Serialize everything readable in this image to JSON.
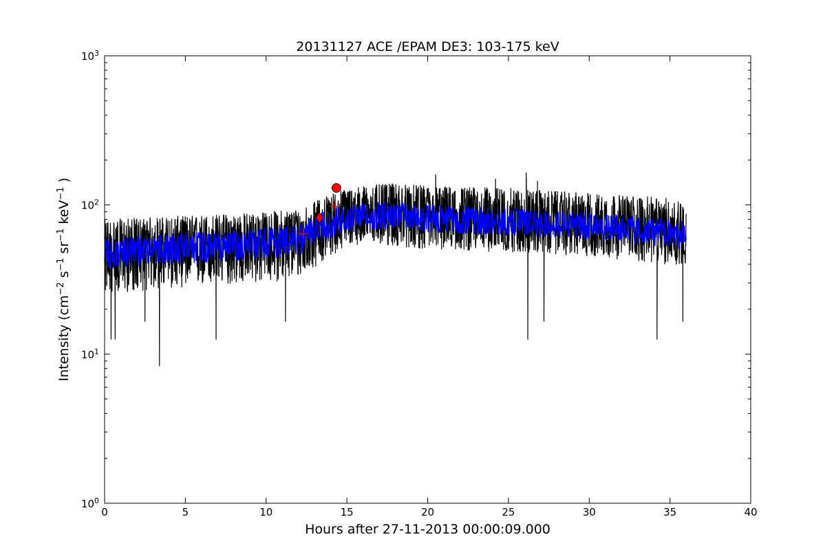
{
  "chart_data": {
    "type": "line",
    "title": "20131127 ACE /EPAM DE3: 103-175 keV",
    "xlabel": "Hours after 27-11-2013 00:00:09.000",
    "ylabel_parts": [
      "Intensity (cm",
      "−2",
      " s",
      "−1",
      " sr",
      "−1",
      " keV",
      "−1",
      " )"
    ],
    "xlim": [
      0,
      40
    ],
    "ylim": [
      1,
      1000
    ],
    "yscale": "log",
    "grid": false,
    "xticks": [
      0,
      5,
      10,
      15,
      20,
      25,
      30,
      35,
      40
    ],
    "ytick_labels": [
      {
        "value": 1,
        "base": "10",
        "exp": "0"
      },
      {
        "value": 10,
        "base": "10",
        "exp": "1"
      },
      {
        "value": 100,
        "base": "10",
        "exp": "2"
      },
      {
        "value": 1000,
        "base": "10",
        "exp": "3"
      }
    ],
    "series": [
      {
        "color": "#000000",
        "style": "noisy raw data",
        "x_range": [
          0,
          36
        ],
        "envelope": {
          "x": [
            0,
            5,
            10,
            12,
            13,
            14,
            15,
            16,
            18,
            20,
            25,
            30,
            36
          ],
          "median": [
            45,
            50,
            55,
            58,
            68,
            75,
            82,
            85,
            88,
            82,
            78,
            72,
            62
          ],
          "low": [
            25,
            28,
            30,
            32,
            38,
            45,
            52,
            55,
            52,
            50,
            48,
            45,
            38
          ],
          "high": [
            80,
            85,
            90,
            95,
            105,
            120,
            130,
            135,
            140,
            135,
            130,
            120,
            110
          ]
        },
        "dips": [
          {
            "x": 3.4,
            "y": 8.3
          },
          {
            "x": 0.4,
            "y": 12.5
          },
          {
            "x": 0.65,
            "y": 12.5
          },
          {
            "x": 6.9,
            "y": 12.5
          },
          {
            "x": 26.2,
            "y": 12.5
          },
          {
            "x": 34.2,
            "y": 12.5
          },
          {
            "x": 2.5,
            "y": 16.5
          },
          {
            "x": 11.2,
            "y": 16.5
          },
          {
            "x": 27.2,
            "y": 16.5
          },
          {
            "x": 35.8,
            "y": 16.5
          }
        ],
        "peaks": [
          {
            "x": 20.5,
            "y": 160
          },
          {
            "x": 26.1,
            "y": 165
          },
          {
            "x": 26.8,
            "y": 145
          },
          {
            "x": 24.2,
            "y": 150
          }
        ]
      },
      {
        "color": "#0000ff",
        "style": "smoothed",
        "x_range": [
          0,
          36
        ],
        "envelope": {
          "x": [
            0,
            5,
            10,
            12,
            13,
            14,
            15,
            16,
            18,
            20,
            25,
            30,
            36
          ],
          "median": [
            47,
            52,
            56,
            58,
            68,
            75,
            82,
            84,
            86,
            82,
            78,
            72,
            63
          ],
          "low": [
            37,
            40,
            43,
            45,
            54,
            60,
            66,
            68,
            68,
            65,
            62,
            58,
            50
          ],
          "high": [
            60,
            65,
            70,
            73,
            85,
            95,
            100,
            103,
            105,
            100,
            96,
            90,
            78
          ]
        }
      }
    ],
    "markers": [
      {
        "type": "plus",
        "x": 12.3,
        "y": 64,
        "color": "#ff0000"
      },
      {
        "type": "diamond",
        "x": 13.3,
        "y": 82,
        "color": "#ff0000"
      },
      {
        "type": "plus",
        "x": 14.2,
        "y": 98,
        "color": "#ff0000"
      },
      {
        "type": "circle",
        "x": 14.35,
        "y": 130,
        "color": "#ff0000"
      }
    ]
  }
}
